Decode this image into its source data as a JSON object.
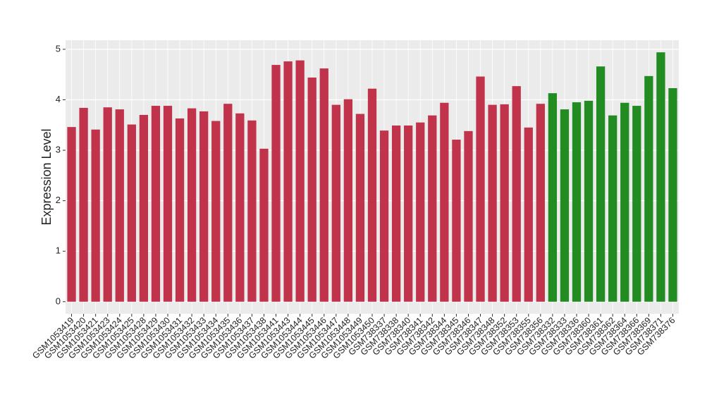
{
  "chart_data": {
    "type": "bar",
    "y_label": "Expression Level",
    "categories": [
      "GSM1053419",
      "GSM1053420",
      "GSM1053421",
      "GSM1053423",
      "GSM1053424",
      "GSM1053425",
      "GSM1053428",
      "GSM1053429",
      "GSM1053430",
      "GSM1053431",
      "GSM1053432",
      "GSM1053433",
      "GSM1053434",
      "GSM1053435",
      "GSM1053436",
      "GSM1053437",
      "GSM1053438",
      "GSM1053441",
      "GSM1053443",
      "GSM1053444",
      "GSM1053445",
      "GSM1053446",
      "GSM1053447",
      "GSM1053448",
      "GSM1053449",
      "GSM1053450",
      "GSM738337",
      "GSM738338",
      "GSM738340",
      "GSM738341",
      "GSM738342",
      "GSM738344",
      "GSM738345",
      "GSM738346",
      "GSM738347",
      "GSM738348",
      "GSM738352",
      "GSM738353",
      "GSM738355",
      "GSM738356",
      "GSM738332",
      "GSM738333",
      "GSM738336",
      "GSM738360",
      "GSM738361",
      "GSM738362",
      "GSM738364",
      "GSM738366",
      "GSM738369",
      "GSM738371",
      "GSM738376"
    ],
    "values": [
      3.46,
      3.84,
      3.41,
      3.85,
      3.81,
      3.51,
      3.7,
      3.88,
      3.88,
      3.63,
      3.83,
      3.77,
      3.58,
      3.92,
      3.73,
      3.59,
      3.03,
      4.69,
      4.76,
      4.78,
      4.44,
      4.62,
      3.9,
      4.01,
      3.72,
      4.22,
      3.39,
      3.49,
      3.49,
      3.55,
      3.69,
      3.94,
      3.21,
      3.38,
      4.46,
      3.9,
      3.91,
      4.27,
      3.45,
      3.92,
      4.13,
      3.81,
      3.95,
      3.98,
      4.66,
      3.69,
      3.94,
      3.88,
      4.47,
      4.94,
      4.23
    ],
    "colors": [
      "#c0334a",
      "#c0334a",
      "#c0334a",
      "#c0334a",
      "#c0334a",
      "#c0334a",
      "#c0334a",
      "#c0334a",
      "#c0334a",
      "#c0334a",
      "#c0334a",
      "#c0334a",
      "#c0334a",
      "#c0334a",
      "#c0334a",
      "#c0334a",
      "#c0334a",
      "#c0334a",
      "#c0334a",
      "#c0334a",
      "#c0334a",
      "#c0334a",
      "#c0334a",
      "#c0334a",
      "#c0334a",
      "#c0334a",
      "#c0334a",
      "#c0334a",
      "#c0334a",
      "#c0334a",
      "#c0334a",
      "#c0334a",
      "#c0334a",
      "#c0334a",
      "#c0334a",
      "#c0334a",
      "#c0334a",
      "#c0334a",
      "#c0334a",
      "#c0334a",
      "#228b22",
      "#228b22",
      "#228b22",
      "#228b22",
      "#228b22",
      "#228b22",
      "#228b22",
      "#228b22",
      "#228b22",
      "#228b22",
      "#228b22"
    ],
    "ylim": [
      -0.24,
      5.18
    ],
    "yticks": [
      0,
      1,
      2,
      3,
      4,
      5
    ],
    "grid": true
  }
}
